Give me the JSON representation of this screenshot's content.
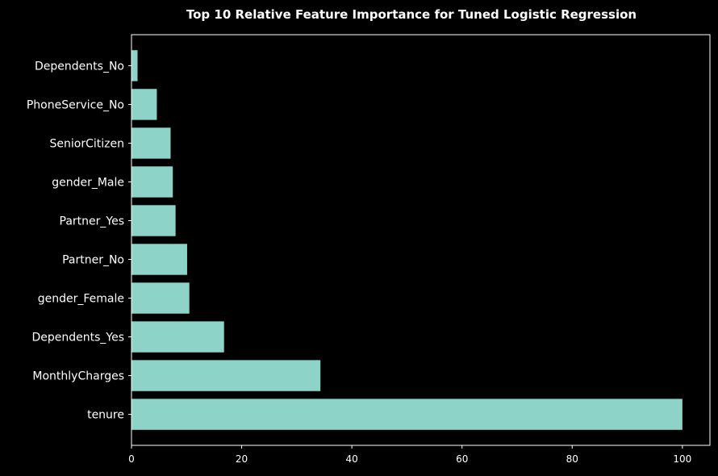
{
  "chart_data": {
    "type": "bar",
    "orientation": "horizontal",
    "title": "Top 10 Relative Feature Importance for Tuned Logistic Regression",
    "xlabel": "",
    "ylabel": "",
    "categories": [
      "tenure",
      "MonthlyCharges",
      "Dependents_Yes",
      "gender_Female",
      "Partner_No",
      "Partner_Yes",
      "gender_Male",
      "SeniorCitizen",
      "PhoneService_No",
      "Dependents_No"
    ],
    "values": [
      100,
      34.3,
      16.8,
      10.5,
      10.1,
      8.0,
      7.5,
      7.1,
      4.6,
      1.1
    ],
    "xlim": [
      0,
      105
    ],
    "xticks": [
      0,
      20,
      40,
      60,
      80,
      100
    ],
    "grid": false,
    "legend": "none",
    "colors": {
      "background": "#000000",
      "bar": "#8dd3c7",
      "axis": "#ffffff",
      "text": "#ffffff"
    }
  }
}
